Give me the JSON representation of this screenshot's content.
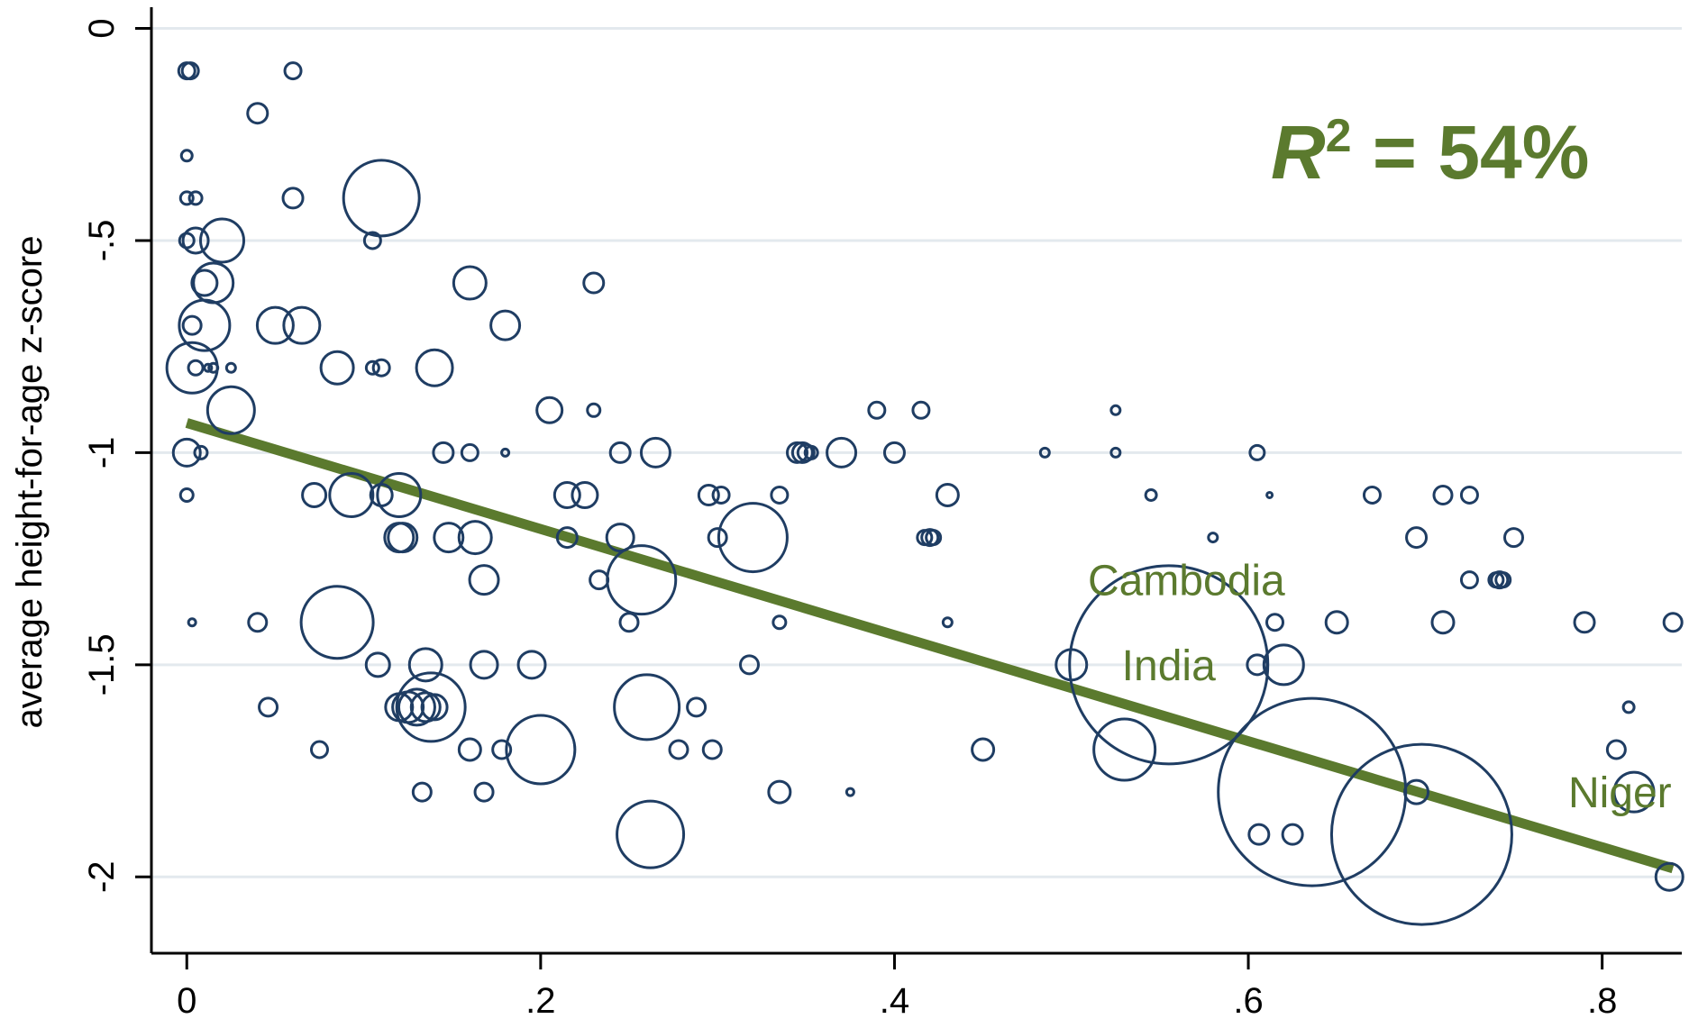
{
  "chart_data": {
    "type": "scatter",
    "title": "",
    "xlabel": "",
    "ylabel": "average height-for-age z-score",
    "xlim": [
      -0.02,
      0.845
    ],
    "ylim": [
      -2.18,
      0.05
    ],
    "x_ticks": [
      0,
      0.2,
      0.4,
      0.6,
      0.8
    ],
    "x_tick_labels": [
      "0",
      ".2",
      ".4",
      ".6",
      ".8"
    ],
    "y_ticks": [
      0,
      -0.5,
      -1,
      -1.5,
      -2
    ],
    "y_tick_labels": [
      "0",
      "-.5",
      "-1",
      "-1.5",
      "-2"
    ],
    "grid": true,
    "legend": "none",
    "colors": {
      "points": "#1f3d63",
      "fit": "#5b7a2e",
      "grid": "#e3e9ee",
      "axis": "#000000"
    },
    "r2_label": {
      "prefix": "R",
      "superscript": "2",
      "suffix": " = 54%"
    },
    "annotations": [
      {
        "text": "Cambodia",
        "x": 0.565,
        "y": -1.3
      },
      {
        "text": "India",
        "x": 0.555,
        "y": -1.5
      },
      {
        "text": "Niger",
        "x": 0.81,
        "y": -1.8
      }
    ],
    "fit_line": {
      "x": [
        0.0,
        0.84
      ],
      "y": [
        -0.93,
        -1.98
      ]
    },
    "series": [
      {
        "points": [
          [
            0.0,
            -0.1,
            9
          ],
          [
            0.002,
            -0.1,
            9
          ],
          [
            0.06,
            -0.1,
            9
          ],
          [
            0.04,
            -0.2,
            11
          ],
          [
            0.0,
            -0.3,
            6
          ],
          [
            0.0,
            -0.4,
            7
          ],
          [
            0.005,
            -0.4,
            7
          ],
          [
            0.06,
            -0.4,
            11
          ],
          [
            0.11,
            -0.4,
            42
          ],
          [
            0.0,
            -0.5,
            8
          ],
          [
            0.005,
            -0.5,
            14
          ],
          [
            0.02,
            -0.5,
            24
          ],
          [
            0.105,
            -0.5,
            9
          ],
          [
            0.01,
            -0.6,
            14
          ],
          [
            0.015,
            -0.6,
            22
          ],
          [
            0.16,
            -0.6,
            18
          ],
          [
            0.23,
            -0.6,
            11
          ],
          [
            0.003,
            -0.7,
            10
          ],
          [
            0.01,
            -0.7,
            28
          ],
          [
            0.05,
            -0.7,
            20
          ],
          [
            0.065,
            -0.7,
            20
          ],
          [
            0.18,
            -0.7,
            16
          ],
          [
            0.005,
            -0.8,
            8
          ],
          [
            0.015,
            -0.8,
            5
          ],
          [
            0.012,
            -0.8,
            4
          ],
          [
            0.003,
            -0.8,
            28
          ],
          [
            0.025,
            -0.8,
            5
          ],
          [
            0.085,
            -0.8,
            18
          ],
          [
            0.105,
            -0.8,
            7
          ],
          [
            0.11,
            -0.8,
            9
          ],
          [
            0.14,
            -0.8,
            20
          ],
          [
            0.025,
            -0.9,
            26
          ],
          [
            0.205,
            -0.9,
            14
          ],
          [
            0.23,
            -0.9,
            7
          ],
          [
            0.39,
            -0.9,
            9
          ],
          [
            0.415,
            -0.9,
            9
          ],
          [
            0.525,
            -0.9,
            5
          ],
          [
            0.0,
            -1.0,
            15
          ],
          [
            0.008,
            -1.0,
            7
          ],
          [
            0.145,
            -1.0,
            11
          ],
          [
            0.16,
            -1.0,
            9
          ],
          [
            0.18,
            -1.0,
            4
          ],
          [
            0.245,
            -1.0,
            11
          ],
          [
            0.265,
            -1.0,
            16
          ],
          [
            0.345,
            -1.0,
            11
          ],
          [
            0.348,
            -1.0,
            11
          ],
          [
            0.35,
            -1.0,
            9
          ],
          [
            0.353,
            -1.0,
            7
          ],
          [
            0.37,
            -1.0,
            16
          ],
          [
            0.4,
            -1.0,
            11
          ],
          [
            0.485,
            -1.0,
            5
          ],
          [
            0.525,
            -1.0,
            5
          ],
          [
            0.605,
            -1.0,
            8
          ],
          [
            0.0,
            -1.1,
            7
          ],
          [
            0.072,
            -1.1,
            13
          ],
          [
            0.093,
            -1.1,
            24
          ],
          [
            0.11,
            -1.1,
            12
          ],
          [
            0.12,
            -1.1,
            24
          ],
          [
            0.215,
            -1.1,
            14
          ],
          [
            0.225,
            -1.1,
            14
          ],
          [
            0.295,
            -1.1,
            11
          ],
          [
            0.302,
            -1.1,
            9
          ],
          [
            0.335,
            -1.1,
            9
          ],
          [
            0.43,
            -1.1,
            12
          ],
          [
            0.545,
            -1.1,
            6
          ],
          [
            0.612,
            -1.1,
            3
          ],
          [
            0.67,
            -1.1,
            9
          ],
          [
            0.71,
            -1.1,
            10
          ],
          [
            0.725,
            -1.1,
            9
          ],
          [
            0.12,
            -1.2,
            16
          ],
          [
            0.122,
            -1.2,
            16
          ],
          [
            0.148,
            -1.2,
            16
          ],
          [
            0.163,
            -1.2,
            18
          ],
          [
            0.215,
            -1.2,
            11
          ],
          [
            0.245,
            -1.2,
            15
          ],
          [
            0.3,
            -1.2,
            10
          ],
          [
            0.32,
            -1.2,
            38
          ],
          [
            0.417,
            -1.2,
            8
          ],
          [
            0.42,
            -1.2,
            9
          ],
          [
            0.422,
            -1.2,
            8
          ],
          [
            0.58,
            -1.2,
            5
          ],
          [
            0.695,
            -1.2,
            11
          ],
          [
            0.75,
            -1.2,
            10
          ],
          [
            0.168,
            -1.3,
            16
          ],
          [
            0.233,
            -1.3,
            10
          ],
          [
            0.257,
            -1.3,
            38
          ],
          [
            0.725,
            -1.3,
            9
          ],
          [
            0.74,
            -1.3,
            8
          ],
          [
            0.742,
            -1.3,
            9
          ],
          [
            0.744,
            -1.3,
            8
          ],
          [
            0.003,
            -1.4,
            4
          ],
          [
            0.04,
            -1.4,
            10
          ],
          [
            0.085,
            -1.4,
            40
          ],
          [
            0.25,
            -1.4,
            10
          ],
          [
            0.335,
            -1.4,
            7
          ],
          [
            0.43,
            -1.4,
            5
          ],
          [
            0.615,
            -1.4,
            9
          ],
          [
            0.65,
            -1.4,
            12
          ],
          [
            0.71,
            -1.4,
            12
          ],
          [
            0.79,
            -1.4,
            11
          ],
          [
            0.84,
            -1.4,
            10
          ],
          [
            0.108,
            -1.5,
            13
          ],
          [
            0.135,
            -1.5,
            18
          ],
          [
            0.168,
            -1.5,
            15
          ],
          [
            0.195,
            -1.5,
            15
          ],
          [
            0.318,
            -1.5,
            10
          ],
          [
            0.5,
            -1.5,
            17
          ],
          [
            0.555,
            -1.5,
            110
          ],
          [
            0.605,
            -1.5,
            11
          ],
          [
            0.62,
            -1.5,
            22
          ],
          [
            0.046,
            -1.6,
            10
          ],
          [
            0.12,
            -1.6,
            15
          ],
          [
            0.125,
            -1.6,
            17
          ],
          [
            0.13,
            -1.6,
            20
          ],
          [
            0.135,
            -1.6,
            16
          ],
          [
            0.138,
            -1.6,
            38
          ],
          [
            0.14,
            -1.6,
            14
          ],
          [
            0.26,
            -1.6,
            36
          ],
          [
            0.288,
            -1.6,
            10
          ],
          [
            0.815,
            -1.6,
            6
          ],
          [
            0.075,
            -1.7,
            9
          ],
          [
            0.16,
            -1.7,
            12
          ],
          [
            0.178,
            -1.7,
            10
          ],
          [
            0.2,
            -1.7,
            38
          ],
          [
            0.278,
            -1.7,
            10
          ],
          [
            0.297,
            -1.7,
            10
          ],
          [
            0.45,
            -1.7,
            12
          ],
          [
            0.53,
            -1.7,
            34
          ],
          [
            0.808,
            -1.7,
            10
          ],
          [
            0.133,
            -1.8,
            10
          ],
          [
            0.168,
            -1.8,
            10
          ],
          [
            0.335,
            -1.8,
            12
          ],
          [
            0.375,
            -1.8,
            4
          ],
          [
            0.636,
            -1.8,
            104
          ],
          [
            0.695,
            -1.8,
            13
          ],
          [
            0.818,
            -1.8,
            22
          ],
          [
            0.262,
            -1.9,
            37
          ],
          [
            0.606,
            -1.9,
            11
          ],
          [
            0.625,
            -1.9,
            11
          ],
          [
            0.698,
            -1.9,
            100
          ],
          [
            0.838,
            -2.0,
            15
          ]
        ]
      }
    ]
  }
}
